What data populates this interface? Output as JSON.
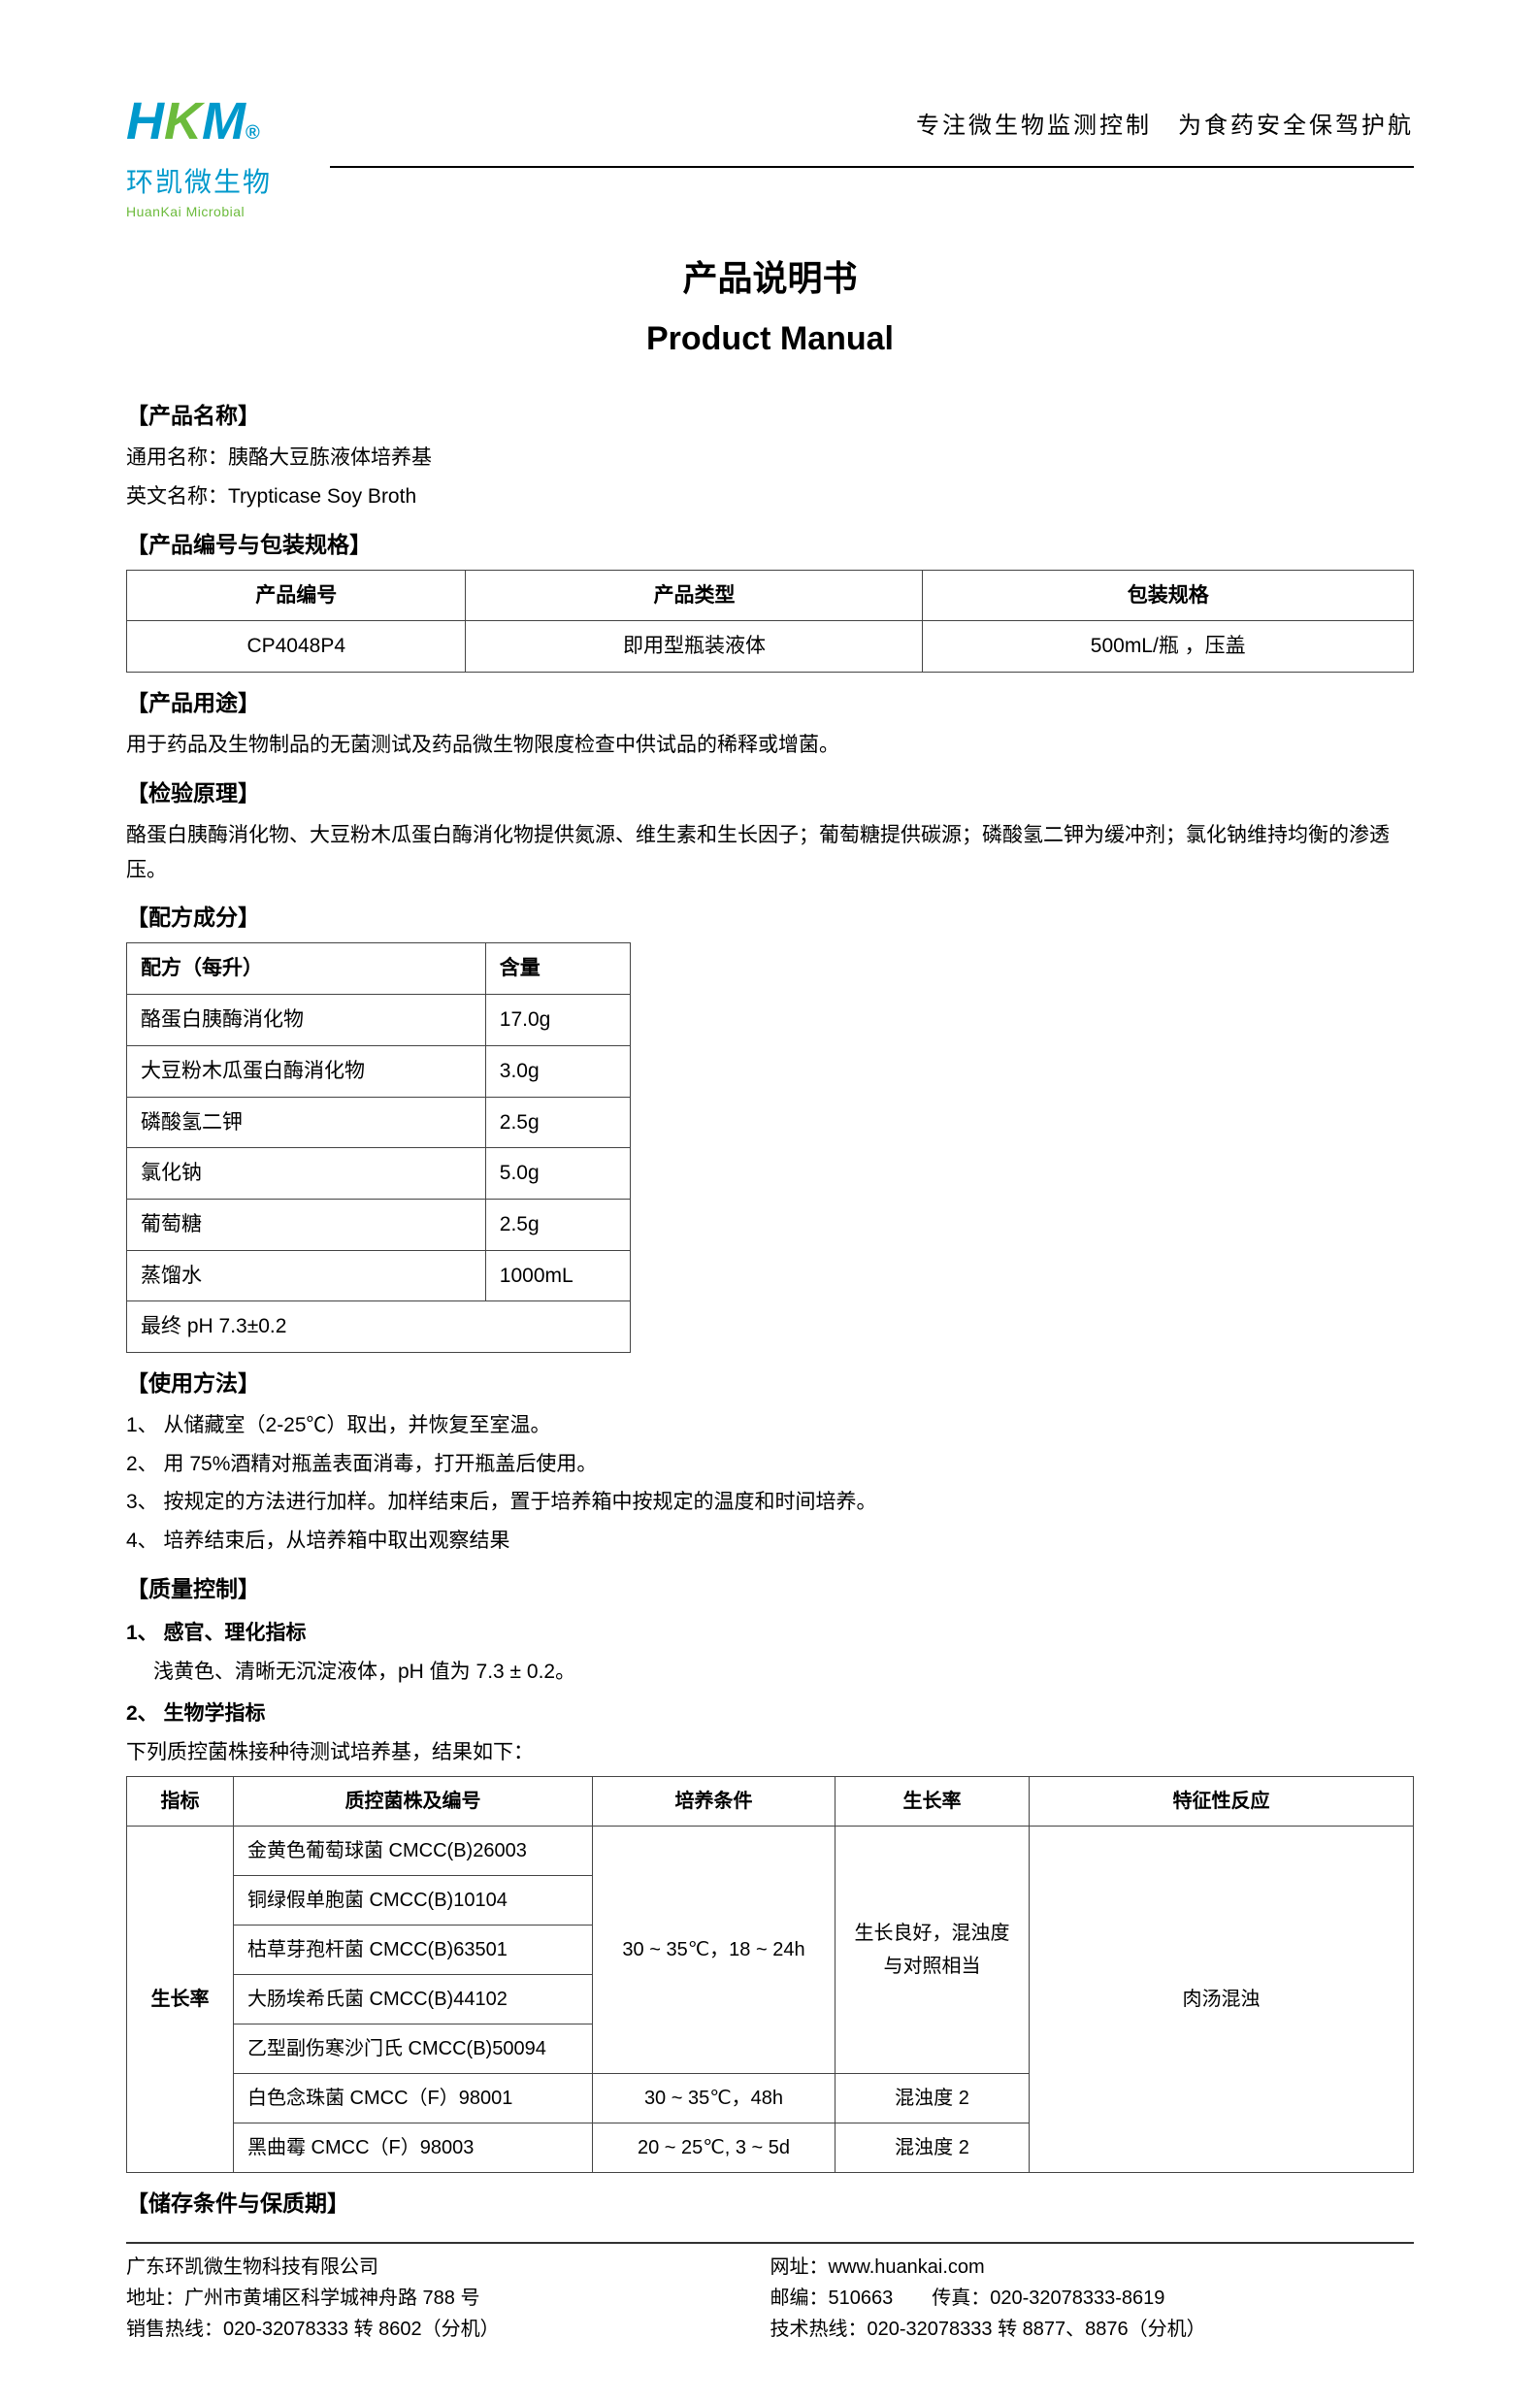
{
  "header": {
    "logo_cn": "环凯微生物",
    "logo_en": "HuanKai Microbial",
    "tagline": "专注微生物监测控制　为食药安全保驾护航"
  },
  "title": {
    "cn": "产品说明书",
    "en": "Product Manual"
  },
  "sections": {
    "product_name_h": "【产品名称】",
    "generic_name_label": "通用名称：",
    "generic_name": "胰酪大豆胨液体培养基",
    "english_name_label": "英文名称：",
    "english_name": "Trypticase Soy Broth",
    "pkg_h": "【产品编号与包装规格】",
    "pkg_table": {
      "headers": [
        "产品编号",
        "产品类型",
        "包装规格"
      ],
      "row": [
        "CP4048P4",
        "即用型瓶装液体",
        "500mL/瓶 ，压盖"
      ]
    },
    "use_h": "【产品用途】",
    "use_text": "用于药品及生物制品的无菌测试及药品微生物限度检查中供试品的稀释或增菌。",
    "principle_h": "【检验原理】",
    "principle_text": "酪蛋白胰酶消化物、大豆粉木瓜蛋白酶消化物提供氮源、维生素和生长因子；葡萄糖提供碳源；磷酸氢二钾为缓冲剂；氯化钠维持均衡的渗透压。",
    "formula_h": "【配方成分】",
    "formula": {
      "headers": [
        "配方（每升）",
        "含量"
      ],
      "rows": [
        [
          "酪蛋白胰酶消化物",
          "17.0g"
        ],
        [
          "大豆粉木瓜蛋白酶消化物",
          "3.0g"
        ],
        [
          "磷酸氢二钾",
          "2.5g"
        ],
        [
          "氯化钠",
          "5.0g"
        ],
        [
          "葡萄糖",
          "2.5g"
        ],
        [
          "蒸馏水",
          "1000mL"
        ]
      ],
      "ph_row": "最终 pH 7.3±0.2"
    },
    "usage_h": "【使用方法】",
    "usage_steps": [
      "1、 从储藏室（2-25℃）取出，并恢复至室温。",
      "2、 用 75%酒精对瓶盖表面消毒，打开瓶盖后使用。",
      "3、 按规定的方法进行加样。加样结束后，置于培养箱中按规定的温度和时间培养。",
      "4、 培养结束后，从培养箱中取出观察结果"
    ],
    "qc_h": "【质量控制】",
    "qc_1_h": "1、 感官、理化指标",
    "qc_1_text": "浅黄色、清晰无沉淀液体，pH 值为 7.3 ± 0.2。",
    "qc_2_h": "2、 生物学指标",
    "qc_2_intro": "下列质控菌株接种待测试培养基，结果如下：",
    "qc_table": {
      "headers": [
        "指标",
        "质控菌株及编号",
        "培养条件",
        "生长率",
        "特征性反应"
      ],
      "index_label": "生长率",
      "strains_group1": [
        "金黄色葡萄球菌 CMCC(B)26003",
        "铜绿假单胞菌 CMCC(B)10104",
        "枯草芽孢杆菌 CMCC(B)63501",
        "大肠埃希氏菌 CMCC(B)44102",
        "乙型副伤寒沙门氏 CMCC(B)50094"
      ],
      "cond_group1": "30 ~ 35℃，18 ~ 24h",
      "growth_group1": "生长良好，混浊度与对照相当",
      "char_all": "肉汤混浊",
      "row6": {
        "strain": "白色念珠菌 CMCC（F）98001",
        "cond": "30 ~ 35℃，48h",
        "growth": "混浊度 2"
      },
      "row7": {
        "strain": "黑曲霉 CMCC（F）98003",
        "cond": "20 ~ 25℃, 3 ~ 5d",
        "growth": "混浊度 2"
      }
    },
    "storage_h": "【储存条件与保质期】"
  },
  "footer": {
    "company": "广东环凯微生物科技有限公司",
    "address": "地址：广州市黄埔区科学城神舟路 788 号",
    "sales": "销售热线：020-32078333 转 8602（分机）",
    "web": "网址：www.huankai.com",
    "zip_fax": "邮编：510663　　传真：020-32078333-8619",
    "tech": "技术热线：020-32078333 转 8877、8876（分机）"
  }
}
